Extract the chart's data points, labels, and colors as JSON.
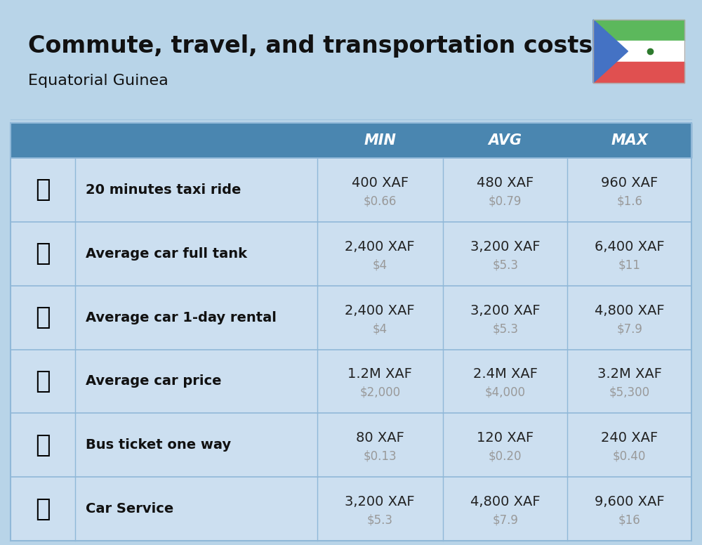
{
  "title": "Commute, travel, and transportation costs",
  "subtitle": "Equatorial Guinea",
  "bg_color": "#b8d4e8",
  "header_bg_color": "#4a86b0",
  "header_text_color": "#ffffff",
  "table_bg": "#ccdff0",
  "separator_color": "#90b8d8",
  "label_color": "#111111",
  "value_color": "#222222",
  "subvalue_color": "#999999",
  "flag_green": "#5cb85c",
  "flag_white": "#ffffff",
  "flag_red": "#e05050",
  "flag_blue": "#4472c4",
  "rows": [
    {
      "label": "20 minutes taxi ride",
      "icon": "🚕",
      "min_xaf": "400 XAF",
      "min_usd": "$0.66",
      "avg_xaf": "480 XAF",
      "avg_usd": "$0.79",
      "max_xaf": "960 XAF",
      "max_usd": "$1.6"
    },
    {
      "label": "Average car full tank",
      "icon": "⛽",
      "min_xaf": "2,400 XAF",
      "min_usd": "$4",
      "avg_xaf": "3,200 XAF",
      "avg_usd": "$5.3",
      "max_xaf": "6,400 XAF",
      "max_usd": "$11"
    },
    {
      "label": "Average car 1-day rental",
      "icon": "🚙",
      "min_xaf": "2,400 XAF",
      "min_usd": "$4",
      "avg_xaf": "3,200 XAF",
      "avg_usd": "$5.3",
      "max_xaf": "4,800 XAF",
      "max_usd": "$7.9"
    },
    {
      "label": "Average car price",
      "icon": "🚗",
      "min_xaf": "1.2M XAF",
      "min_usd": "$2,000",
      "avg_xaf": "2.4M XAF",
      "avg_usd": "$4,000",
      "max_xaf": "3.2M XAF",
      "max_usd": "$5,300"
    },
    {
      "label": "Bus ticket one way",
      "icon": "🚌",
      "min_xaf": "80 XAF",
      "min_usd": "$0.13",
      "avg_xaf": "120 XAF",
      "avg_usd": "$0.20",
      "max_xaf": "240 XAF",
      "max_usd": "$0.40"
    },
    {
      "label": "Car Service",
      "icon": "🚗",
      "min_xaf": "3,200 XAF",
      "min_usd": "$5.3",
      "avg_xaf": "4,800 XAF",
      "avg_usd": "$7.9",
      "max_xaf": "9,600 XAF",
      "max_usd": "$16"
    }
  ]
}
